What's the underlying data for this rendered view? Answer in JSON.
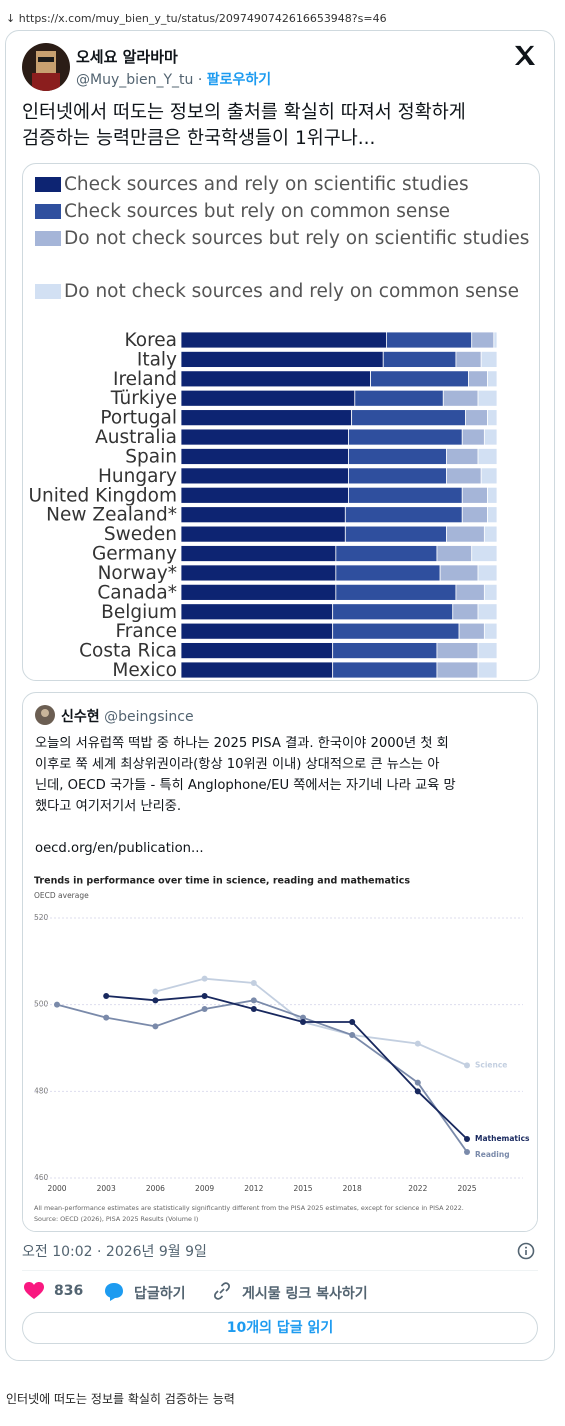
{
  "url": "https://x.com/muy_bien_y_tu/status/2097490742616653948?s=46",
  "tweet": {
    "name": "오세요 알라바마",
    "handle": "@Muy_bien_Y_tu",
    "separator": "·",
    "follow": "팔로우하기",
    "text_lines": [
      "인터넷에서 떠도는 정보의 출처를 확실히 따져서 정확하게",
      "검증하는 능력만큼은 한국학생들이 1위구나..."
    ],
    "timestamp": "오전 10:02 · 2026년 9월 9일",
    "likes": 836,
    "reply": "답글하기",
    "copy_link": "게시물 링크 복사하기",
    "read_replies": "10개의 답글 읽기"
  },
  "quote": {
    "name": "신수현",
    "handle": "@beingsince",
    "text_lines": [
      "오늘의 서유럽쪽 떡밥 중 하나는 2025 PISA 결과. 한국이야 2000년 첫 회",
      "이후로 쭉 세계 최상위권이라(항상 10위권 이내) 상대적으로 큰 뉴스는 아",
      "닌데, OECD 국가들 - 특히 Anglophone/EU 쪽에서는 자기네 나라 교육 망",
      "했다고 여기저기서 난리중."
    ],
    "link": "oecd.org/en/publication..."
  },
  "chart_data": [
    {
      "type": "stacked-bar-horizontal",
      "categories": [
        "Korea",
        "Italy",
        "Ireland",
        "Türkiye",
        "Portugal",
        "Australia",
        "Spain",
        "Hungary",
        "United Kingdom",
        "New Zealand*",
        "Sweden",
        "Germany",
        "Norway*",
        "Canada*",
        "Belgium",
        "France",
        "Costa Rica",
        "Mexico"
      ],
      "xlim": [
        0,
        100
      ],
      "series": [
        {
          "name": "Check sources and rely on scientific studies",
          "color": "#0d2472",
          "values": [
            65,
            64,
            60,
            55,
            54,
            53,
            53,
            53,
            53,
            52,
            52,
            49,
            49,
            49,
            48,
            48,
            48,
            48
          ]
        },
        {
          "name": "Check sources but rely on common sense",
          "color": "#2f4f9e",
          "values": [
            27,
            23,
            31,
            28,
            36,
            36,
            31,
            31,
            36,
            37,
            32,
            32,
            33,
            38,
            38,
            40,
            33,
            33
          ]
        },
        {
          "name": "Do not check sources but rely on scientific studies",
          "color": "#a5b5d8",
          "values": [
            7,
            8,
            6,
            11,
            7,
            7,
            10,
            11,
            8,
            8,
            12,
            11,
            12,
            9,
            8,
            8,
            13,
            13
          ]
        },
        {
          "name": "Do not check sources and rely on common sense",
          "color": "#d2e0f3",
          "values": [
            1,
            5,
            3,
            6,
            3,
            4,
            6,
            5,
            3,
            3,
            4,
            8,
            6,
            4,
            6,
            4,
            6,
            6
          ]
        }
      ]
    },
    {
      "type": "line",
      "title": "Trends in performance over time in science, reading and mathematics",
      "subtitle": "OECD average",
      "x": [
        2000,
        2003,
        2006,
        2009,
        2012,
        2015,
        2018,
        2022,
        2025
      ],
      "xlim": [
        2000,
        2025
      ],
      "xticks": [
        2000,
        2003,
        2006,
        2009,
        2012,
        2015,
        2018,
        2022,
        2025
      ],
      "ylim": [
        460,
        520
      ],
      "yticks": [
        460,
        480,
        500,
        520
      ],
      "grid": true,
      "series": [
        {
          "name": "Science",
          "color": "#c3cfe0",
          "values": [
            null,
            null,
            503,
            506,
            505,
            496,
            493,
            491,
            486
          ]
        },
        {
          "name": "Reading",
          "color": "#7a8aaa",
          "values": [
            500,
            497,
            495,
            499,
            501,
            497,
            493,
            482,
            466
          ]
        },
        {
          "name": "Mathematics",
          "color": "#18285e",
          "values": [
            null,
            502,
            501,
            502,
            499,
            496,
            496,
            480,
            469
          ]
        }
      ],
      "notes": [
        "All mean-performance estimates are statistically significantly different from the PISA 2025 estimates, except for science in PISA 2022.",
        "Source: OECD (2026), PISA 2025 Results (Volume I)"
      ]
    }
  ],
  "caption": "인터넷에 떠도는 정보를 확실히 검증하는 능력"
}
